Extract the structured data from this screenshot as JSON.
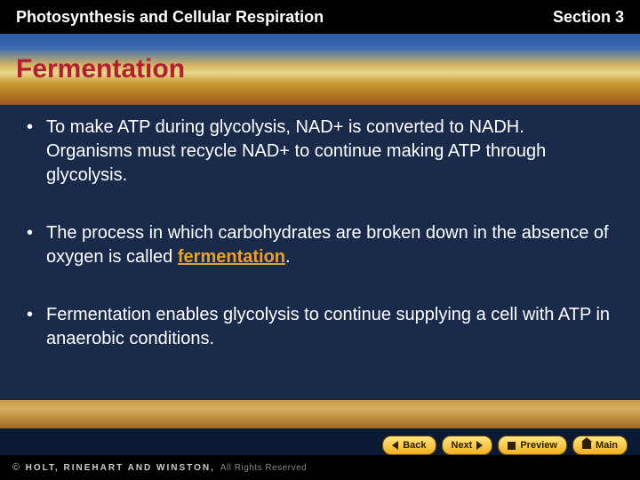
{
  "header": {
    "chapter": "Photosynthesis and Cellular Respiration",
    "section": "Section 3"
  },
  "slide": {
    "title": "Fermentation",
    "title_color": "#b02030",
    "bullets": [
      {
        "text": "To make ATP during glycolysis, NAD+ is converted to NADH. Organisms must recycle NAD+ to continue making ATP through glycolysis."
      },
      {
        "text_pre": "The process in which carbohydrates are broken down in the absence of oxygen is called ",
        "highlight": "fermentation",
        "text_post": "."
      },
      {
        "text": "Fermentation enables glycolysis to continue supplying a cell with ATP in anaerobic conditions."
      }
    ],
    "highlight_color": "#e8a030",
    "text_color": "#ffffff",
    "fontsize": 20
  },
  "nav": {
    "back": "Back",
    "next": "Next",
    "preview": "Preview",
    "main": "Main"
  },
  "footer": {
    "brand": "HOLT, RINEHART AND WINSTON,",
    "rights": "All Rights Reserved"
  },
  "colors": {
    "page_bg": "#000000",
    "band_sky": "#2a5aa0",
    "band_sand": "#d8b860",
    "ground": "#c89840",
    "btn_bg_top": "#ffe680",
    "btn_bg_bottom": "#f0b020"
  }
}
